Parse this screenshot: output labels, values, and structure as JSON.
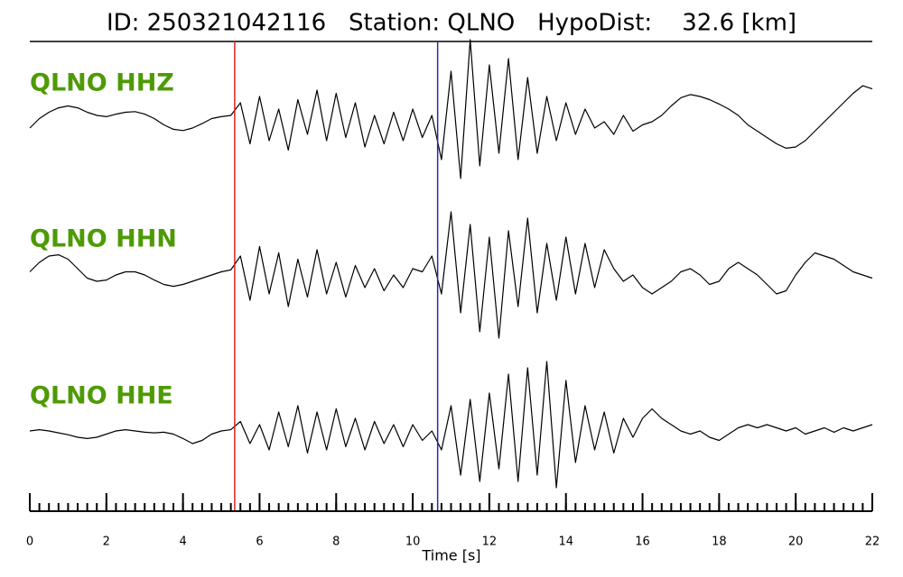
{
  "chart_data": {
    "type": "seismogram",
    "title": "ID: 250321042116   Station: QLNO   HypoDist:    32.6 [km]",
    "x_label": "Time [s]",
    "xlim": [
      0,
      22
    ],
    "xticks": [
      0,
      2,
      4,
      6,
      8,
      10,
      12,
      14,
      16,
      18,
      20,
      22
    ],
    "xticks_minor": [
      0,
      0.25,
      0.5,
      0.75,
      1,
      1.25,
      1.5,
      1.75,
      2,
      2.25,
      2.5,
      2.75,
      3,
      3.25,
      3.5,
      3.75,
      4,
      4.25,
      4.5,
      4.75,
      5,
      5.25,
      5.5,
      5.75,
      6,
      6.25,
      6.5,
      6.75,
      7,
      7.25,
      7.5,
      7.75,
      8,
      8.25,
      8.5,
      8.75,
      9,
      9.25,
      9.5,
      9.75,
      10,
      10.25,
      10.5,
      10.75,
      11,
      11.25,
      11.5,
      11.75,
      12,
      12.25,
      12.5,
      12.75,
      13,
      13.25,
      13.5,
      13.75,
      14,
      14.25,
      14.5,
      14.75,
      15,
      15.25,
      15.5,
      15.75,
      16,
      16.25,
      16.5,
      16.75,
      17,
      17.25,
      17.5,
      17.75,
      18,
      18.25,
      18.5,
      18.75,
      19,
      19.25,
      19.5,
      19.75,
      20,
      20.25,
      20.5,
      20.75,
      21,
      21.25,
      21.5,
      21.75,
      22
    ],
    "x": [
      0,
      0.25,
      0.5,
      0.75,
      1,
      1.25,
      1.5,
      1.75,
      2,
      2.25,
      2.5,
      2.75,
      3,
      3.25,
      3.5,
      3.75,
      4,
      4.25,
      4.5,
      4.75,
      5,
      5.25,
      5.5,
      5.75,
      6,
      6.25,
      6.5,
      6.75,
      7,
      7.25,
      7.5,
      7.75,
      8,
      8.25,
      8.5,
      8.75,
      9,
      9.25,
      9.5,
      9.75,
      10,
      10.25,
      10.5,
      10.75,
      11,
      11.25,
      11.5,
      11.75,
      12,
      12.25,
      12.5,
      12.75,
      13,
      13.25,
      13.5,
      13.75,
      14,
      14.25,
      14.5,
      14.75,
      15,
      15.25,
      15.5,
      15.75,
      16,
      16.25,
      16.5,
      16.75,
      17,
      17.25,
      17.5,
      17.75,
      18,
      18.25,
      18.5,
      18.75,
      19,
      19.25,
      19.5,
      19.75,
      20,
      20.25,
      20.5,
      20.75,
      21,
      21.25,
      21.5,
      21.75,
      22
    ],
    "label_color": "#4e9a06",
    "trace_color": "#000000",
    "picks": [
      {
        "value": 5.35,
        "color": "#e02020"
      },
      {
        "value": 10.65,
        "color": "#2a2aa8"
      }
    ],
    "traces": [
      {
        "name": "QLNO HHZ",
        "values": [
          -0.1,
          0.05,
          0.15,
          0.22,
          0.25,
          0.22,
          0.15,
          0.1,
          0.08,
          0.12,
          0.15,
          0.16,
          0.12,
          0.05,
          -0.05,
          -0.12,
          -0.14,
          -0.1,
          -0.03,
          0.05,
          0.08,
          0.1,
          0.3,
          -0.35,
          0.4,
          -0.3,
          0.2,
          -0.45,
          0.35,
          -0.2,
          0.5,
          -0.3,
          0.45,
          -0.25,
          0.3,
          -0.4,
          0.1,
          -0.35,
          0.15,
          -0.3,
          0.2,
          -0.25,
          0.1,
          -0.6,
          0.8,
          -0.9,
          1.3,
          -0.7,
          0.9,
          -0.5,
          1.0,
          -0.6,
          0.7,
          -0.5,
          0.4,
          -0.3,
          0.3,
          -0.2,
          0.2,
          -0.1,
          0.0,
          -0.2,
          0.1,
          -0.15,
          -0.05,
          0.0,
          0.1,
          0.25,
          0.38,
          0.43,
          0.4,
          0.35,
          0.28,
          0.2,
          0.1,
          -0.05,
          -0.15,
          -0.25,
          -0.35,
          -0.42,
          -0.4,
          -0.3,
          -0.15,
          0.0,
          0.15,
          0.3,
          0.45,
          0.57,
          0.52
        ]
      },
      {
        "name": "QLNO HHN",
        "values": [
          0.05,
          0.2,
          0.3,
          0.32,
          0.25,
          0.1,
          -0.05,
          -0.1,
          -0.08,
          0.0,
          0.05,
          0.05,
          0.0,
          -0.08,
          -0.15,
          -0.18,
          -0.15,
          -0.1,
          -0.05,
          0.0,
          0.05,
          0.08,
          0.3,
          -0.4,
          0.45,
          -0.3,
          0.35,
          -0.5,
          0.25,
          -0.35,
          0.4,
          -0.3,
          0.2,
          -0.35,
          0.15,
          -0.2,
          0.1,
          -0.25,
          0.0,
          -0.2,
          0.1,
          0.05,
          0.3,
          -0.3,
          1.0,
          -0.6,
          0.8,
          -0.9,
          0.6,
          -1.0,
          0.7,
          -0.5,
          0.9,
          -0.6,
          0.5,
          -0.4,
          0.6,
          -0.3,
          0.5,
          -0.2,
          0.4,
          0.1,
          -0.1,
          0.0,
          -0.2,
          -0.3,
          -0.2,
          -0.1,
          0.05,
          0.1,
          0.0,
          -0.15,
          -0.1,
          0.1,
          0.2,
          0.1,
          0.0,
          -0.15,
          -0.3,
          -0.25,
          0.0,
          0.2,
          0.35,
          0.3,
          0.25,
          0.15,
          0.05,
          0.0,
          -0.05
        ]
      },
      {
        "name": "QLNO HHE",
        "values": [
          0.0,
          0.02,
          0.0,
          -0.03,
          -0.06,
          -0.1,
          -0.12,
          -0.1,
          -0.05,
          0.0,
          0.02,
          0.0,
          -0.02,
          -0.03,
          -0.02,
          -0.05,
          -0.12,
          -0.2,
          -0.15,
          -0.05,
          0.0,
          0.02,
          0.15,
          -0.2,
          0.1,
          -0.3,
          0.3,
          -0.25,
          0.4,
          -0.35,
          0.3,
          -0.3,
          0.35,
          -0.25,
          0.2,
          -0.3,
          0.15,
          -0.2,
          0.1,
          -0.25,
          0.1,
          -0.15,
          0.0,
          -0.3,
          0.4,
          -0.7,
          0.5,
          -0.8,
          0.6,
          -0.6,
          0.9,
          -0.8,
          1.0,
          -0.7,
          1.1,
          -0.9,
          0.8,
          -0.5,
          0.4,
          -0.3,
          0.3,
          -0.35,
          0.2,
          -0.1,
          0.2,
          0.35,
          0.2,
          0.1,
          0.0,
          -0.05,
          0.0,
          -0.1,
          -0.15,
          -0.05,
          0.05,
          0.1,
          0.05,
          0.1,
          0.05,
          0.0,
          0.05,
          -0.05,
          0.0,
          0.05,
          -0.02,
          0.05,
          0.0,
          0.05,
          0.1
        ]
      }
    ]
  }
}
